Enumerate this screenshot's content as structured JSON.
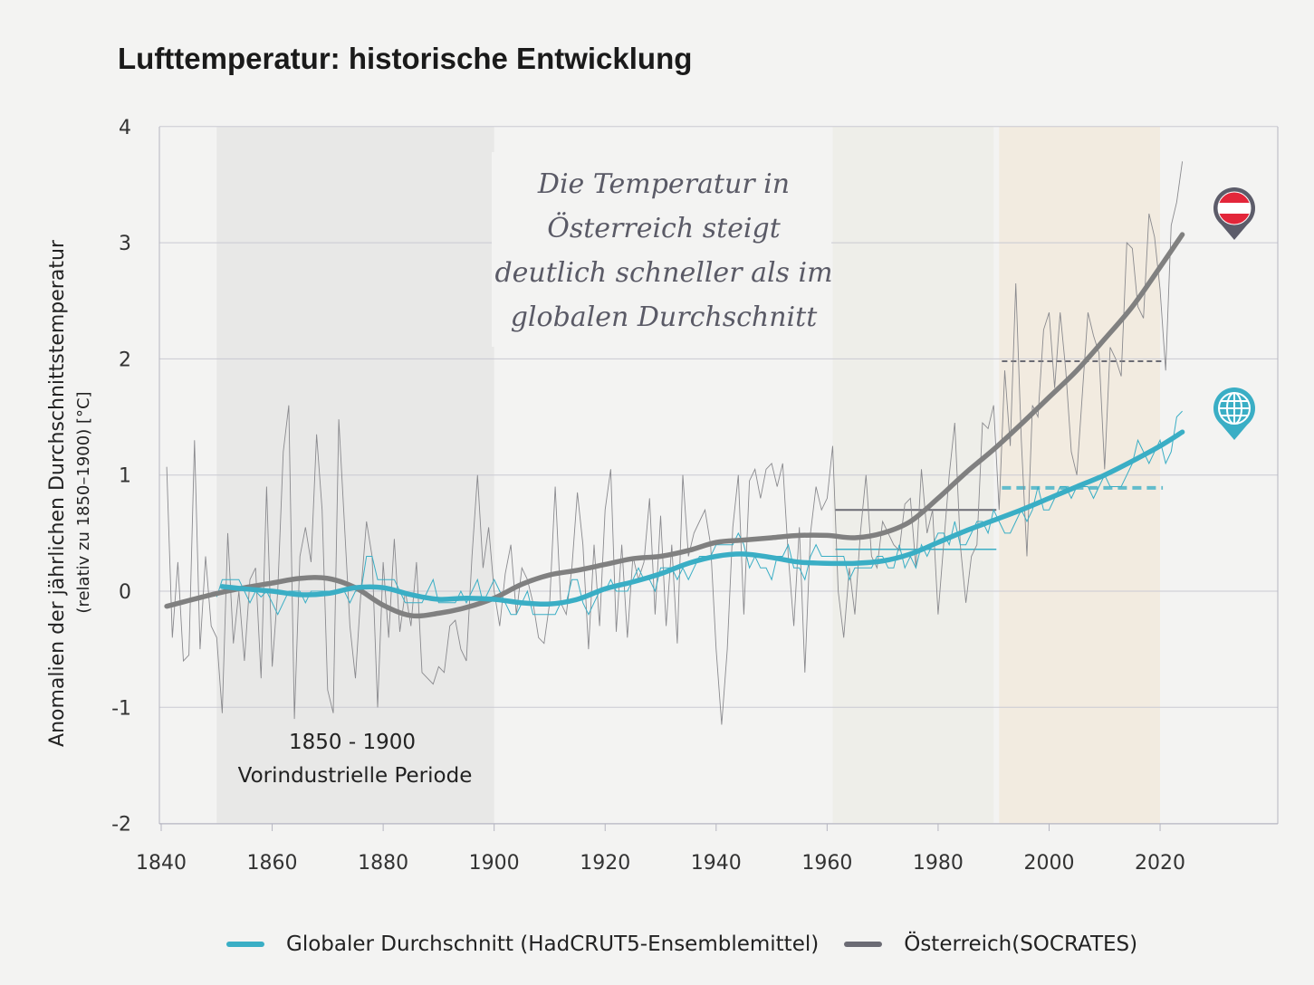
{
  "title": "Lufttemperatur: historische Entwicklung",
  "chart_data": {
    "type": "line",
    "title": "Lufttemperatur: historische Entwicklung",
    "ylabel": "Anomalien der jährlichen Durchschnittstemperatur",
    "ylabel_sub": "(relativ zu 1850–1900) [°C]",
    "xlabel": "",
    "xlim": [
      1837,
      2041
    ],
    "ylim": [
      -2,
      4
    ],
    "xticks": [
      "1840",
      "1860",
      "1880",
      "1900",
      "1920",
      "1940",
      "1960",
      "1980",
      "2000",
      "2020"
    ],
    "yticks": [
      "-2",
      "-1",
      "0",
      "1",
      "2",
      "3",
      "4"
    ],
    "grid": "horizontal",
    "legend_position": "bottom",
    "colors": {
      "global": "#3aaec5",
      "austria": "#808080",
      "austria_annual": "#8a8a8e",
      "austria_pin": "#5c5c6a",
      "flag_red": "#e3263a"
    },
    "shaded_periods": [
      {
        "from": 1850,
        "to": 1900,
        "color": "#e8e8e7",
        "label_line1": "1850 - 1900",
        "label_line2": "Vorindustrielle Periode"
      },
      {
        "from": 1961,
        "to": 1990,
        "color": "#eeeee9"
      },
      {
        "from": 1991,
        "to": 2020,
        "color": "#f2ebe0"
      }
    ],
    "annotation": [
      "Die Temperatur in",
      "Österreich steigt",
      "deutlich schneller als im",
      "globalen Durchschnitt"
    ],
    "series": [
      {
        "name": "Globaler Durchschnitt (HadCRUT5-Ensemblemittel)",
        "annual_start": 1850,
        "annual": [
          -0.05,
          0.1,
          0.1,
          0.1,
          0.1,
          0.0,
          -0.1,
          0.0,
          -0.05,
          0.0,
          -0.1,
          -0.2,
          -0.1,
          0.0,
          0.0,
          0.0,
          -0.1,
          0.0,
          0.0,
          0.0,
          0.0,
          0.0,
          0.0,
          0.0,
          -0.1,
          0.0,
          0.0,
          0.3,
          0.3,
          0.1,
          0.1,
          0.1,
          0.1,
          0.0,
          -0.1,
          -0.1,
          -0.1,
          -0.1,
          0.0,
          0.1,
          -0.1,
          -0.1,
          -0.1,
          -0.1,
          0.0,
          -0.1,
          0.0,
          0.1,
          -0.1,
          0.0,
          0.1,
          0.0,
          -0.1,
          -0.2,
          -0.2,
          -0.1,
          0.0,
          -0.2,
          -0.2,
          -0.2,
          -0.2,
          -0.2,
          -0.1,
          -0.1,
          0.1,
          0.1,
          -0.1,
          -0.2,
          -0.1,
          0.0,
          0.0,
          0.1,
          0.0,
          0.0,
          0.0,
          0.1,
          0.2,
          0.1,
          0.1,
          0.0,
          0.2,
          0.2,
          0.2,
          0.1,
          0.2,
          0.1,
          0.2,
          0.3,
          0.3,
          0.3,
          0.4,
          0.4,
          0.4,
          0.4,
          0.5,
          0.4,
          0.2,
          0.3,
          0.2,
          0.2,
          0.1,
          0.3,
          0.3,
          0.4,
          0.2,
          0.2,
          0.1,
          0.3,
          0.4,
          0.3,
          0.3,
          0.3,
          0.3,
          0.3,
          0.1,
          0.2,
          0.2,
          0.2,
          0.2,
          0.3,
          0.3,
          0.2,
          0.2,
          0.4,
          0.2,
          0.3,
          0.2,
          0.4,
          0.3,
          0.4,
          0.5,
          0.5,
          0.4,
          0.6,
          0.4,
          0.4,
          0.5,
          0.6,
          0.6,
          0.5,
          0.7,
          0.6,
          0.5,
          0.5,
          0.6,
          0.7,
          0.6,
          0.7,
          0.9,
          0.7,
          0.7,
          0.8,
          0.9,
          0.9,
          0.8,
          0.9,
          0.9,
          0.9,
          0.8,
          0.9,
          1.0,
          0.9,
          0.9,
          0.9,
          1.0,
          1.1,
          1.3,
          1.2,
          1.1,
          1.2,
          1.3,
          1.1,
          1.2,
          1.5,
          1.55
        ],
        "smoothed": [
          [
            1851,
            0.04
          ],
          [
            1855,
            0.02
          ],
          [
            1860,
            0.0
          ],
          [
            1865,
            -0.03
          ],
          [
            1870,
            -0.02
          ],
          [
            1875,
            0.03
          ],
          [
            1880,
            0.03
          ],
          [
            1885,
            -0.03
          ],
          [
            1890,
            -0.07
          ],
          [
            1895,
            -0.06
          ],
          [
            1900,
            -0.07
          ],
          [
            1905,
            -0.1
          ],
          [
            1910,
            -0.11
          ],
          [
            1915,
            -0.07
          ],
          [
            1920,
            0.02
          ],
          [
            1925,
            0.08
          ],
          [
            1930,
            0.15
          ],
          [
            1935,
            0.24
          ],
          [
            1940,
            0.3
          ],
          [
            1945,
            0.32
          ],
          [
            1950,
            0.29
          ],
          [
            1955,
            0.25
          ],
          [
            1960,
            0.24
          ],
          [
            1965,
            0.24
          ],
          [
            1970,
            0.26
          ],
          [
            1975,
            0.32
          ],
          [
            1980,
            0.42
          ],
          [
            1985,
            0.52
          ],
          [
            1990,
            0.61
          ],
          [
            1995,
            0.7
          ],
          [
            2000,
            0.8
          ],
          [
            2005,
            0.9
          ],
          [
            2010,
            1.0
          ],
          [
            2015,
            1.12
          ],
          [
            2020,
            1.25
          ],
          [
            2024,
            1.37
          ]
        ],
        "mean_1961_1990": 0.36,
        "mean_1991_2020": 0.89
      },
      {
        "name": "Österreich(SOCRATES)",
        "annual_start": 1841,
        "annual": [
          1.07,
          -0.4,
          0.25,
          -0.6,
          -0.55,
          1.3,
          -0.5,
          0.3,
          -0.3,
          -0.4,
          -1.05,
          0.5,
          -0.45,
          0.0,
          -0.6,
          0.1,
          0.2,
          -0.75,
          0.9,
          -0.65,
          0.0,
          1.2,
          1.6,
          -1.1,
          0.3,
          0.55,
          0.25,
          1.35,
          0.7,
          -0.85,
          -1.05,
          1.48,
          0.6,
          -0.3,
          -0.75,
          0.0,
          0.6,
          0.3,
          -1.0,
          0.25,
          -0.4,
          0.45,
          -0.35,
          0.0,
          -0.3,
          0.25,
          -0.7,
          -0.75,
          -0.8,
          -0.65,
          -0.7,
          -0.3,
          -0.25,
          -0.5,
          -0.6,
          0.3,
          1.0,
          0.2,
          0.55,
          0.0,
          -0.3,
          0.15,
          0.4,
          -0.2,
          0.2,
          0.1,
          -0.1,
          -0.4,
          -0.45,
          -0.1,
          0.9,
          -0.1,
          -0.2,
          0.2,
          0.85,
          0.4,
          -0.5,
          0.4,
          -0.3,
          0.7,
          1.05,
          -0.35,
          0.4,
          -0.4,
          0.3,
          0.1,
          0.25,
          0.8,
          -0.2,
          0.65,
          -0.3,
          0.4,
          -0.45,
          1.0,
          0.3,
          0.5,
          0.6,
          0.7,
          0.4,
          -0.5,
          -1.15,
          -0.5,
          0.55,
          1.0,
          -0.2,
          0.95,
          1.05,
          0.8,
          1.05,
          1.1,
          0.9,
          1.1,
          0.3,
          -0.3,
          0.55,
          -0.7,
          0.5,
          0.9,
          0.7,
          0.8,
          1.25,
          0.0,
          -0.4,
          0.2,
          -0.2,
          0.5,
          1.0,
          0.3,
          0.2,
          0.6,
          0.5,
          0.4,
          0.35,
          0.75,
          0.8,
          0.2,
          1.05,
          0.5,
          0.7,
          -0.2,
          0.4,
          1.0,
          1.45,
          0.4,
          -0.1,
          0.3,
          0.4,
          1.45,
          1.4,
          1.6,
          0.7,
          1.9,
          1.25,
          2.65,
          1.3,
          0.3,
          1.6,
          1.5,
          2.25,
          2.4,
          1.75,
          2.4,
          1.9,
          1.2,
          1.0,
          1.7,
          2.4,
          2.2,
          2.05,
          1.05,
          2.1,
          2.0,
          1.85,
          3.0,
          2.95,
          2.45,
          2.35,
          3.25,
          3.05,
          2.6,
          1.9,
          3.15,
          3.35,
          3.7
        ],
        "smoothed": [
          [
            1841,
            -0.13
          ],
          [
            1845,
            -0.08
          ],
          [
            1850,
            -0.02
          ],
          [
            1855,
            0.03
          ],
          [
            1860,
            0.07
          ],
          [
            1865,
            0.11
          ],
          [
            1870,
            0.11
          ],
          [
            1875,
            0.03
          ],
          [
            1880,
            -0.12
          ],
          [
            1885,
            -0.21
          ],
          [
            1890,
            -0.19
          ],
          [
            1895,
            -0.14
          ],
          [
            1900,
            -0.06
          ],
          [
            1905,
            0.06
          ],
          [
            1910,
            0.14
          ],
          [
            1915,
            0.18
          ],
          [
            1920,
            0.23
          ],
          [
            1925,
            0.28
          ],
          [
            1930,
            0.3
          ],
          [
            1935,
            0.35
          ],
          [
            1940,
            0.42
          ],
          [
            1945,
            0.44
          ],
          [
            1950,
            0.46
          ],
          [
            1955,
            0.48
          ],
          [
            1960,
            0.48
          ],
          [
            1965,
            0.46
          ],
          [
            1970,
            0.5
          ],
          [
            1975,
            0.6
          ],
          [
            1980,
            0.8
          ],
          [
            1985,
            1.02
          ],
          [
            1990,
            1.22
          ],
          [
            1995,
            1.44
          ],
          [
            2000,
            1.67
          ],
          [
            2005,
            1.9
          ],
          [
            2010,
            2.17
          ],
          [
            2015,
            2.45
          ],
          [
            2020,
            2.79
          ],
          [
            2024,
            3.07
          ]
        ],
        "mean_1961_1990": 0.7,
        "mean_1991_2020": 1.98
      }
    ]
  },
  "legend": {
    "global_label": "Globaler Durchschnitt (HadCRUT5-Ensemblemittel)",
    "austria_label": "Österreich(SOCRATES)"
  }
}
